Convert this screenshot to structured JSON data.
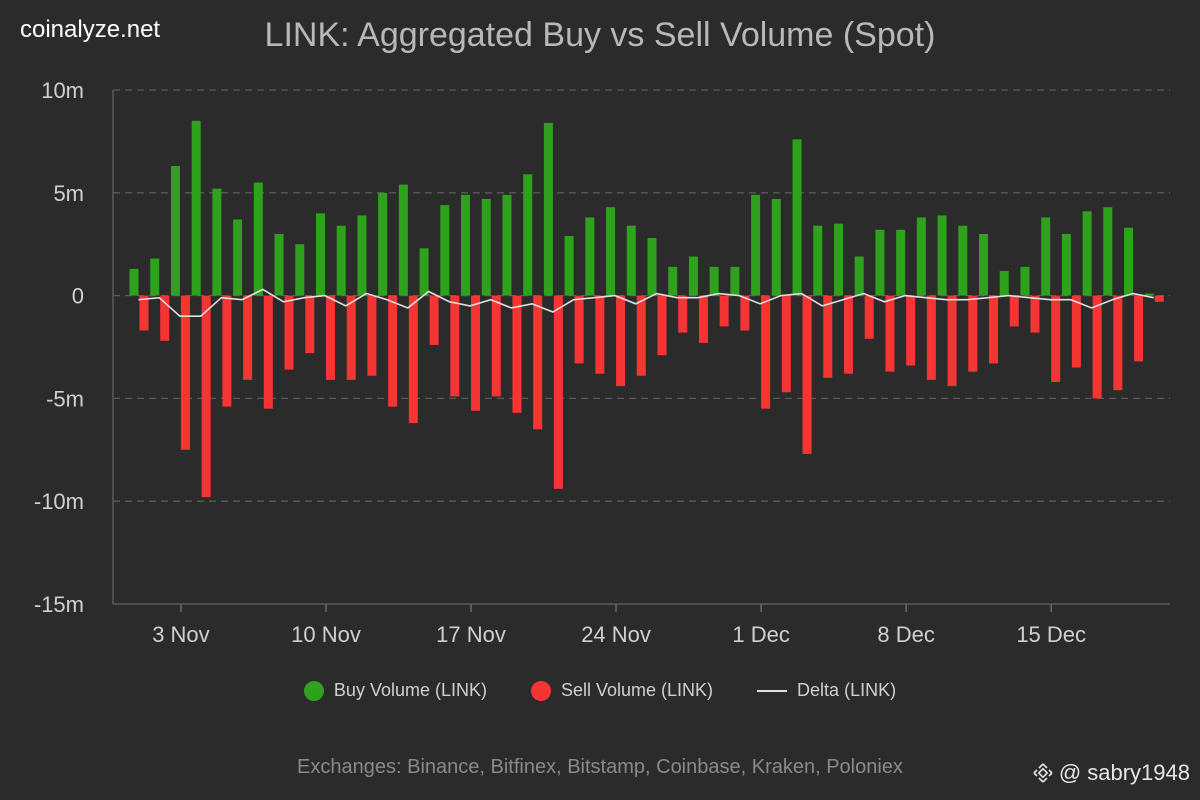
{
  "brand": "coinalyze.net",
  "footer": "Exchanges: Binance, Bitfinex, Bitstamp, Coinbase, Kraken, Poloniex",
  "watermark": {
    "at": "@",
    "handle": "sabry1948",
    "icon": "binance-icon"
  },
  "legend": [
    {
      "label": "Buy Volume (LINK)",
      "color": "#2ea21d",
      "shape": "dot"
    },
    {
      "label": "Sell Volume (LINK)",
      "color": "#f53434",
      "shape": "dot"
    },
    {
      "label": "Delta (LINK)",
      "color": "#e0e0e0",
      "shape": "line"
    }
  ],
  "chart_data": {
    "type": "bar",
    "title": "LINK: Aggregated Buy vs Sell Volume (Spot)",
    "unit": "millions (m)",
    "ylim": [
      -15,
      10
    ],
    "yticks": [
      10,
      5,
      0,
      -5,
      -10,
      -15
    ],
    "ytick_labels": [
      "10m",
      "5m",
      "0",
      "-5m",
      "-10m",
      "-15m"
    ],
    "grid": true,
    "x_start_index": 0,
    "x_ticks": [
      {
        "index": 2,
        "label": "3 Nov"
      },
      {
        "index": 9,
        "label": "10 Nov"
      },
      {
        "index": 16,
        "label": "17 Nov"
      },
      {
        "index": 23,
        "label": "24 Nov"
      },
      {
        "index": 30,
        "label": "1 Dec"
      },
      {
        "index": 37,
        "label": "8 Dec"
      },
      {
        "index": 44,
        "label": "15 Dec"
      }
    ],
    "series": [
      {
        "name": "Buy Volume (LINK)",
        "color": "#2ea21d",
        "values": [
          1.3,
          1.8,
          6.3,
          8.5,
          5.2,
          3.7,
          5.5,
          3.0,
          2.5,
          4.0,
          3.4,
          3.9,
          5.0,
          5.4,
          2.3,
          4.4,
          4.9,
          4.7,
          4.9,
          5.9,
          8.4,
          2.9,
          3.8,
          4.3,
          3.4,
          2.8,
          1.4,
          1.9,
          1.4,
          1.4,
          4.9,
          4.7,
          7.6,
          3.4,
          3.5,
          1.9,
          3.2,
          3.2,
          3.8,
          3.9,
          3.4,
          3.0,
          1.2,
          1.4,
          3.8,
          3.0,
          4.1,
          4.3,
          3.3,
          0.1
        ]
      },
      {
        "name": "Sell Volume (LINK)",
        "color": "#f53434",
        "values": [
          -1.7,
          -2.2,
          -7.5,
          -9.8,
          -5.4,
          -4.1,
          -5.5,
          -3.6,
          -2.8,
          -4.1,
          -4.1,
          -3.9,
          -5.4,
          -6.2,
          -2.4,
          -4.9,
          -5.6,
          -4.9,
          -5.7,
          -6.5,
          -9.4,
          -3.3,
          -3.8,
          -4.4,
          -3.9,
          -2.9,
          -1.8,
          -2.3,
          -1.5,
          -1.7,
          -5.5,
          -4.7,
          -7.7,
          -4.0,
          -3.8,
          -2.1,
          -3.7,
          -3.4,
          -4.1,
          -4.4,
          -3.7,
          -3.3,
          -1.5,
          -1.8,
          -4.2,
          -3.5,
          -5.0,
          -4.6,
          -3.2,
          -0.3
        ]
      },
      {
        "name": "Delta (LINK)",
        "color": "#e0e0e0",
        "values": [
          -0.2,
          -0.1,
          -1.0,
          -1.0,
          -0.1,
          -0.2,
          0.3,
          -0.3,
          -0.1,
          0.0,
          -0.5,
          0.1,
          -0.2,
          -0.6,
          0.2,
          -0.3,
          -0.5,
          -0.2,
          -0.6,
          -0.4,
          -0.8,
          -0.2,
          -0.1,
          0.0,
          -0.4,
          0.1,
          -0.1,
          -0.1,
          0.1,
          0.0,
          -0.4,
          0.0,
          0.1,
          -0.5,
          -0.2,
          0.1,
          -0.3,
          0.0,
          -0.1,
          -0.2,
          -0.2,
          -0.1,
          0.0,
          -0.1,
          -0.2,
          -0.2,
          -0.6,
          -0.2,
          0.1,
          -0.1
        ]
      }
    ]
  }
}
